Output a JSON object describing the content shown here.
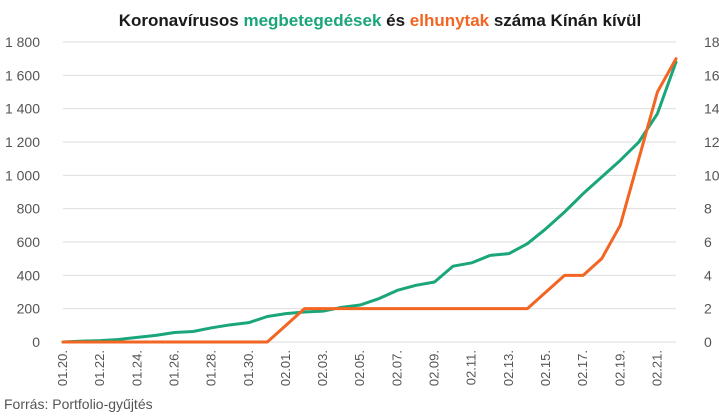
{
  "title": {
    "part1": "Koronavírusos ",
    "part2": "megbetegedések",
    "part3": " és ",
    "part4": "elhunytak",
    "part5": " száma Kínán kívül"
  },
  "source": "Forrás: Portfolio-gyűjtés",
  "colors": {
    "cases": "#1aa57a",
    "deaths": "#f26522",
    "grid": "#dedede",
    "text": "#555555"
  },
  "chart_data": {
    "type": "line",
    "title": "Koronavírusos megbetegedések és elhunytak száma Kínán kívül",
    "x": [
      "01.20.",
      "01.21.",
      "01.22.",
      "01.23.",
      "01.24.",
      "01.25.",
      "01.26.",
      "01.27.",
      "01.28.",
      "01.29.",
      "01.30.",
      "01.31.",
      "02.01.",
      "02.02.",
      "02.03.",
      "02.04.",
      "02.05.",
      "02.06.",
      "02.07.",
      "02.08.",
      "02.09.",
      "02.10.",
      "02.11.",
      "02.12.",
      "02.13.",
      "02.14.",
      "02.15.",
      "02.16.",
      "02.17.",
      "02.18.",
      "02.19.",
      "02.20.",
      "02.21.",
      "02.22."
    ],
    "xticks": [
      "01.20.",
      "01.22.",
      "01.24.",
      "01.26.",
      "01.28.",
      "01.30.",
      "02.01.",
      "02.03.",
      "02.05.",
      "02.07.",
      "02.09.",
      "02.11.",
      "02.13.",
      "02.15.",
      "02.17.",
      "02.19.",
      "02.21."
    ],
    "series": [
      {
        "name": "megbetegedések",
        "axis": "left",
        "color": "#1aa57a",
        "values": [
          0,
          5,
          8,
          15,
          28,
          40,
          57,
          63,
          85,
          103,
          116,
          153,
          170,
          180,
          185,
          208,
          222,
          260,
          310,
          340,
          360,
          455,
          475,
          520,
          530,
          590,
          680,
          780,
          890,
          990,
          1090,
          1200,
          1370,
          1680
        ]
      },
      {
        "name": "elhunytak",
        "axis": "right",
        "color": "#f26522",
        "values": [
          0,
          0,
          0,
          0,
          0,
          0,
          0,
          0,
          0,
          0,
          0,
          0,
          1,
          2,
          2,
          2,
          2,
          2,
          2,
          2,
          2,
          2,
          2,
          2,
          2,
          2,
          3,
          4,
          4,
          5,
          7,
          11,
          15,
          17
        ]
      }
    ],
    "ylim_left": [
      0,
      1800
    ],
    "yticks_left": [
      0,
      200,
      400,
      600,
      800,
      1000,
      1200,
      1400,
      1600,
      1800
    ],
    "ytick_labels_left": [
      "0",
      "200",
      "400",
      "600",
      "800",
      "1 000",
      "1 200",
      "1 400",
      "1 600",
      "1 800"
    ],
    "ylim_right": [
      0,
      18
    ],
    "yticks_right": [
      0,
      2,
      4,
      6,
      8,
      10,
      12,
      14,
      16,
      18
    ],
    "ytick_labels_right": [
      "0",
      "2",
      "4",
      "6",
      "8",
      "10",
      "12",
      "14",
      "16",
      "18"
    ],
    "grid": true,
    "legend": "none"
  }
}
